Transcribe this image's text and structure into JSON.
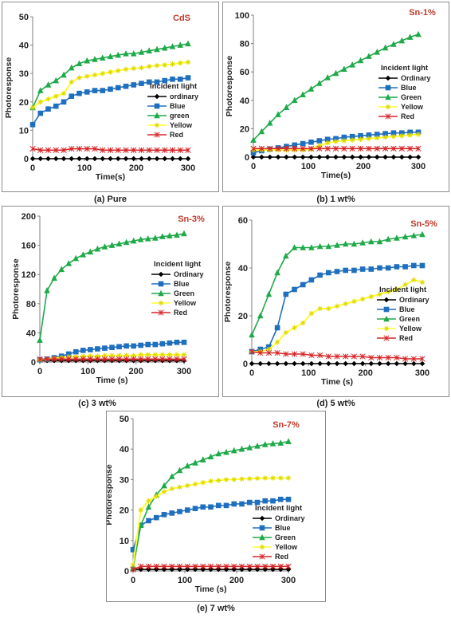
{
  "chart_data": [
    {
      "type": "line",
      "panel_tag": "CdS",
      "caption": "(a) Pure",
      "xlabel": "Time(s)",
      "ylabel": "Photoresponse",
      "xlim": [
        0,
        300
      ],
      "ylim": [
        0,
        50
      ],
      "xticks": [
        0,
        100,
        200,
        300
      ],
      "yticks": [
        0,
        10,
        20,
        30,
        40,
        50
      ],
      "legend_title": "Incident light",
      "x": [
        0,
        15,
        30,
        45,
        60,
        75,
        90,
        105,
        120,
        135,
        150,
        165,
        180,
        195,
        210,
        225,
        240,
        255,
        270,
        285,
        300
      ],
      "series": [
        {
          "name": "ordinary",
          "color": "#000000",
          "marker": "diamond",
          "values": [
            0,
            0,
            0,
            0,
            0,
            0,
            0,
            0,
            0,
            0,
            0,
            0,
            0,
            0,
            0,
            0,
            0,
            0,
            0,
            0,
            0
          ]
        },
        {
          "name": "Blue",
          "color": "#1f6fbf",
          "marker": "square",
          "values": [
            12,
            16,
            17.5,
            18.5,
            20,
            22,
            23,
            23.5,
            24,
            24,
            24.5,
            25,
            25.5,
            26,
            26.5,
            27,
            27,
            27.5,
            28,
            28,
            28.5
          ]
        },
        {
          "name": "green",
          "color": "#1faa4a",
          "marker": "triangle",
          "values": [
            18,
            24,
            26,
            27.5,
            29.5,
            32,
            33.5,
            34.5,
            35,
            35.5,
            36,
            36.5,
            37,
            37,
            37.5,
            38,
            38.5,
            39,
            39.5,
            40,
            40.5
          ]
        },
        {
          "name": "Yellow",
          "color": "#ffff33",
          "marker": "star",
          "values": [
            18,
            20,
            21,
            22,
            23,
            27,
            28.5,
            29,
            29.5,
            30,
            30.5,
            31,
            31.5,
            31.8,
            32,
            32.5,
            32.8,
            33,
            33.3,
            33.7,
            34
          ]
        },
        {
          "name": "Red",
          "color": "#d62728",
          "marker": "x",
          "values": [
            3.5,
            3,
            3,
            3,
            3,
            3.5,
            3.5,
            3.5,
            3.5,
            3,
            3,
            3,
            3,
            3,
            3,
            3,
            3,
            3,
            3,
            3,
            3
          ]
        }
      ]
    },
    {
      "type": "line",
      "panel_tag": "Sn-1%",
      "caption": "(b) 1 wt%",
      "xlabel": "Time(s)",
      "ylabel": "Photoresponse",
      "xlim": [
        0,
        300
      ],
      "ylim": [
        0,
        100
      ],
      "xticks": [
        0,
        100,
        200,
        300
      ],
      "yticks": [
        0,
        20,
        40,
        60,
        80,
        100
      ],
      "legend_title": "Incident light",
      "x": [
        0,
        15,
        30,
        45,
        60,
        75,
        90,
        105,
        120,
        135,
        150,
        165,
        180,
        195,
        210,
        225,
        240,
        255,
        270,
        285,
        300
      ],
      "series": [
        {
          "name": "Ordinary",
          "color": "#000000",
          "marker": "diamond",
          "values": [
            0,
            0,
            0,
            0,
            0,
            0,
            0,
            0,
            0,
            0,
            0,
            0,
            0,
            0,
            0,
            0,
            0,
            0,
            0,
            0,
            0
          ]
        },
        {
          "name": "Blue",
          "color": "#1f6fbf",
          "marker": "square",
          "values": [
            3,
            4.5,
            5.5,
            6.5,
            7.5,
            8.5,
            9.5,
            10.5,
            11.5,
            12.5,
            13,
            14,
            14.5,
            15,
            15.5,
            16,
            16.5,
            17,
            17,
            17.5,
            17.5
          ]
        },
        {
          "name": "Green",
          "color": "#1faa4a",
          "marker": "triangle",
          "values": [
            12,
            18,
            24,
            30,
            35,
            40,
            44,
            48,
            52,
            56,
            59,
            62,
            65,
            68,
            71,
            74,
            77,
            79.5,
            82,
            84.5,
            86.5
          ]
        },
        {
          "name": "Yellow",
          "color": "#ffff33",
          "marker": "star",
          "values": [
            5,
            5,
            5,
            5,
            5,
            5,
            5,
            5.5,
            8,
            10,
            11,
            11.5,
            12,
            12.5,
            13,
            13.5,
            14,
            14.5,
            15,
            15.5,
            16
          ]
        },
        {
          "name": "Red",
          "color": "#d62728",
          "marker": "x",
          "values": [
            6,
            6,
            6,
            6,
            6,
            6,
            6,
            6,
            6,
            6,
            6,
            6,
            6,
            6,
            6,
            6,
            6,
            6,
            6,
            6,
            6
          ]
        }
      ]
    },
    {
      "type": "line",
      "panel_tag": "Sn-3%",
      "caption": "(c) 3 wt%",
      "xlabel": "Time (s)",
      "ylabel": "Photoresponse",
      "xlim": [
        0,
        300
      ],
      "ylim": [
        0,
        200
      ],
      "xticks": [
        0,
        100,
        200,
        300
      ],
      "yticks": [
        0,
        40,
        80,
        120,
        160,
        200
      ],
      "legend_title": "Incident light",
      "x": [
        0,
        15,
        30,
        45,
        60,
        75,
        90,
        105,
        120,
        135,
        150,
        165,
        180,
        195,
        210,
        225,
        240,
        255,
        270,
        285,
        300
      ],
      "series": [
        {
          "name": "Ordinary",
          "color": "#000000",
          "marker": "diamond",
          "values": [
            2,
            2,
            2,
            2,
            2,
            2,
            2,
            2,
            2,
            2,
            2,
            2,
            2,
            2,
            2,
            2,
            2,
            2,
            2,
            2,
            2
          ]
        },
        {
          "name": "Blue",
          "color": "#1f6fbf",
          "marker": "square",
          "values": [
            3,
            4,
            6,
            8,
            11,
            14,
            16,
            17,
            18,
            19,
            20,
            21,
            22,
            22,
            23,
            24,
            24,
            25,
            26,
            27,
            27
          ]
        },
        {
          "name": "Green",
          "color": "#1faa4a",
          "marker": "triangle",
          "values": [
            30,
            98,
            115,
            127,
            135,
            142,
            147,
            151,
            155,
            158,
            160,
            162,
            164,
            166,
            168,
            169,
            170,
            172,
            173,
            174,
            176
          ]
        },
        {
          "name": "Yellow",
          "color": "#ffff33",
          "marker": "star",
          "values": [
            3,
            4,
            5,
            6,
            7,
            7,
            8,
            8,
            8,
            9,
            9,
            9,
            9,
            9,
            10,
            10,
            10,
            10,
            10,
            10,
            10
          ]
        },
        {
          "name": "Red",
          "color": "#d62728",
          "marker": "x",
          "values": [
            4,
            4,
            4,
            4,
            4,
            4,
            4,
            4,
            4,
            4,
            4,
            4,
            4,
            4,
            4,
            4,
            4,
            4,
            4,
            4,
            4
          ]
        }
      ]
    },
    {
      "type": "line",
      "panel_tag": "Sn-5%",
      "caption": "(d) 5 wt%",
      "xlabel": "Time (s)",
      "ylabel": "Photoresponse",
      "xlim": [
        0,
        300
      ],
      "ylim": [
        0,
        60
      ],
      "xticks": [
        0,
        100,
        200,
        300
      ],
      "yticks": [
        0,
        20,
        40,
        60
      ],
      "legend_title": "Incident light",
      "x": [
        0,
        15,
        30,
        45,
        60,
        75,
        90,
        105,
        120,
        135,
        150,
        165,
        180,
        195,
        210,
        225,
        240,
        255,
        270,
        285,
        300
      ],
      "series": [
        {
          "name": "Ordinary",
          "color": "#000000",
          "marker": "diamond",
          "values": [
            0,
            0,
            0,
            0,
            0,
            0,
            0,
            0,
            0,
            0,
            0,
            0,
            0,
            0,
            0,
            0,
            0,
            0,
            0,
            0,
            0
          ]
        },
        {
          "name": "Blue",
          "color": "#1f6fbf",
          "marker": "square",
          "values": [
            5,
            6,
            7,
            15,
            29,
            31,
            33,
            35,
            37,
            38,
            38.5,
            39,
            39,
            39.5,
            39.5,
            40,
            40,
            40.5,
            40.5,
            41,
            41
          ]
        },
        {
          "name": "Green",
          "color": "#1faa4a",
          "marker": "triangle",
          "values": [
            12,
            20,
            29,
            38,
            45,
            48.5,
            48.5,
            48.5,
            49,
            49,
            49.5,
            50,
            50,
            50.5,
            51,
            51,
            52,
            52.5,
            53,
            53.5,
            54
          ]
        },
        {
          "name": "Yellow",
          "color": "#ffff33",
          "marker": "star",
          "values": [
            5,
            5,
            6,
            9,
            13,
            15,
            17,
            21,
            23,
            23,
            24,
            25,
            26,
            27,
            28,
            29,
            30,
            31,
            33,
            35,
            34
          ]
        },
        {
          "name": "Red",
          "color": "#d62728",
          "marker": "x",
          "values": [
            5,
            4.5,
            4.5,
            4.5,
            4,
            4,
            4,
            3.5,
            3.5,
            3,
            3,
            3,
            3,
            3,
            2.5,
            2.5,
            2.5,
            2.5,
            2,
            2,
            2
          ]
        }
      ]
    },
    {
      "type": "line",
      "panel_tag": "Sn-7%",
      "caption": "(e) 7 wt%",
      "xlabel": "Time (s)",
      "ylabel": "Photoresponse",
      "xlim": [
        0,
        300
      ],
      "ylim": [
        0,
        50
      ],
      "xticks": [
        0,
        100,
        200,
        300
      ],
      "yticks": [
        0,
        10,
        20,
        30,
        40,
        50
      ],
      "legend_title": "Incident light",
      "x": [
        0,
        15,
        30,
        45,
        60,
        75,
        90,
        105,
        120,
        135,
        150,
        165,
        180,
        195,
        210,
        225,
        240,
        255,
        270,
        285,
        300
      ],
      "series": [
        {
          "name": "Ordinary",
          "color": "#000000",
          "marker": "diamond",
          "values": [
            0.5,
            0.5,
            0.5,
            0.5,
            0.5,
            0.5,
            0.5,
            0.5,
            0.5,
            0.5,
            0.5,
            0.5,
            0.5,
            0.5,
            0.5,
            0.5,
            0.5,
            0.5,
            0.5,
            0.5,
            0.5
          ]
        },
        {
          "name": "Blue",
          "color": "#1f6fbf",
          "marker": "square",
          "values": [
            7,
            15,
            16.5,
            17.5,
            18.5,
            19,
            19.5,
            20,
            20.5,
            21,
            21,
            21.5,
            21.5,
            22,
            22,
            22.5,
            22.5,
            23,
            23,
            23.5,
            23.5
          ]
        },
        {
          "name": "Green",
          "color": "#1faa4a",
          "marker": "triangle",
          "values": [
            1,
            15,
            21,
            25,
            28,
            31,
            33,
            34.5,
            35.5,
            36.5,
            37.5,
            38.5,
            39,
            39.5,
            40,
            40.5,
            41,
            41.5,
            41.8,
            42,
            42.5
          ]
        },
        {
          "name": "Yellow",
          "color": "#ffff33",
          "marker": "star",
          "values": [
            2,
            20,
            23,
            24.5,
            26,
            27,
            27.5,
            28,
            28.5,
            29,
            29.5,
            29.7,
            30,
            30,
            30.2,
            30.3,
            30.4,
            30.5,
            30.5,
            30.5,
            30.5
          ]
        },
        {
          "name": "Red",
          "color": "#d62728",
          "marker": "x",
          "values": [
            0.5,
            1.5,
            1.5,
            1.5,
            1.5,
            1.5,
            1.5,
            1.5,
            1.5,
            1.5,
            1.5,
            1.5,
            1.5,
            1.5,
            1.5,
            1.5,
            1.5,
            1.5,
            1.5,
            1.5,
            1.5
          ]
        }
      ]
    }
  ]
}
